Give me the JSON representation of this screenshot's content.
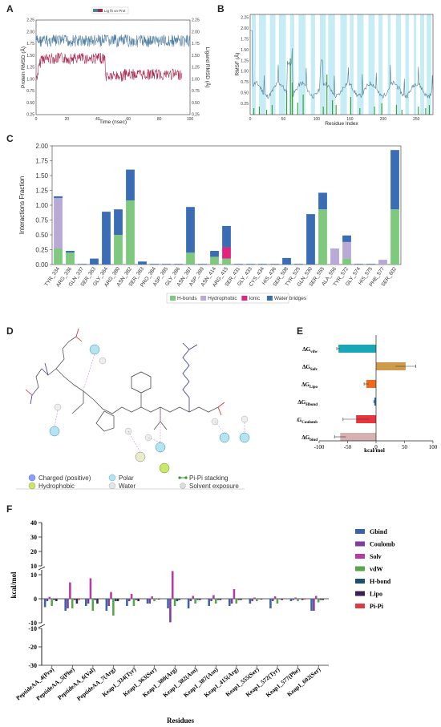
{
  "panels": {
    "a": {
      "label": "A",
      "legend": "Lig fit on Prot",
      "xlabel": "Time (nsec)",
      "ylabel_left": "Protein RMSD (Å)",
      "ylabel_right": "Ligand RMSD (Å)",
      "xticks": [
        "0",
        "20",
        "40",
        "60",
        "80",
        "100"
      ],
      "yticks_left": [
        "0.25",
        "0.50",
        "0.75",
        "1.00",
        "1.25",
        "1.50",
        "1.75",
        "2.00",
        "2.25"
      ],
      "yticks_right": [
        "0.25",
        "0.50",
        "0.75",
        "1.00",
        "1.25",
        "1.50",
        "1.75",
        "2.00",
        "2.25"
      ],
      "colors": {
        "protein": "#4f7ea0",
        "ligand": "#a8284e"
      }
    },
    "b": {
      "label": "B",
      "xlabel": "Residue Index",
      "ylabel": "RMSF (Å)",
      "xticks": [
        "0",
        "50",
        "100",
        "150",
        "200",
        "250"
      ],
      "yticks": [
        "0.25",
        "0.50",
        "0.75",
        "1.00",
        "1.25",
        "1.50",
        "1.75",
        "2.00",
        "2.25"
      ],
      "colors": {
        "line": "#4f7f95",
        "contact": "#2e9e2e",
        "band": "#c6ecf5"
      }
    },
    "c": {
      "label": "C",
      "colors": {
        "hbond": "#7fc97f",
        "hydrophobic": "#b8a9d6",
        "ionic": "#e3247f",
        "water": "#3a6db5"
      }
    },
    "d": {
      "label": "D",
      "legend": [
        {
          "label": "Charged (positive)",
          "icon": "blue-sphere"
        },
        {
          "label": "Polar",
          "icon": "cyan-sphere"
        },
        {
          "label": "Pi-Pi stacking",
          "icon": "green-dumbbell"
        },
        {
          "label": "Hydrophobic",
          "icon": "green-sphere"
        },
        {
          "label": "Water",
          "icon": "gray-sphere"
        },
        {
          "label": "Solvent exposure",
          "icon": "dotted-circle"
        }
      ]
    },
    "e": {
      "label": "E"
    },
    "f": {
      "label": "F"
    }
  },
  "chart_data": [
    {
      "type": "bar",
      "panel": "C",
      "ylabel": "Interactions Fraction",
      "ylim": [
        0,
        2.0
      ],
      "yticks": [
        "0.00",
        "0.25",
        "0.50",
        "0.75",
        "1.00",
        "1.25",
        "1.50",
        "1.75",
        "2.00"
      ],
      "legend_position": "bottom",
      "categories": [
        "TYR_334",
        "ARG_336",
        "GLN_337",
        "SER_363",
        "GLY_364",
        "ARG_380",
        "ASN_382",
        "SER_383",
        "PRO_384",
        "ASP_385",
        "GLY_386",
        "ASN_387",
        "ASP_389",
        "ASN_414",
        "ARG_415",
        "SER_431",
        "GLY_433",
        "CYS_434",
        "HIS_436",
        "SER_508",
        "TYR_525",
        "GLN_530",
        "SER_555",
        "ALA_556",
        "TYR_572",
        "GLY_574",
        "HIS_575",
        "PHE_577",
        "SER_602"
      ],
      "series": [
        {
          "name": "H-bonds",
          "values": [
            0.27,
            0.2,
            0,
            0,
            0,
            0.5,
            1.08,
            0,
            0,
            0,
            0,
            0.2,
            0,
            0.13,
            0.1,
            0,
            0,
            0,
            0,
            0,
            0,
            0,
            0.93,
            0,
            0.1,
            0,
            0,
            0,
            0.93
          ]
        },
        {
          "name": "Hydrophobic",
          "values": [
            0.85,
            0,
            0,
            0,
            0,
            0,
            0,
            0,
            0,
            0,
            0,
            0,
            0,
            0,
            0,
            0,
            0,
            0,
            0,
            0,
            0,
            0,
            0,
            0.27,
            0.28,
            0,
            0,
            0.08,
            0
          ]
        },
        {
          "name": "Ionic",
          "values": [
            0,
            0,
            0,
            0,
            0,
            0,
            0,
            0,
            0,
            0,
            0,
            0,
            0,
            0,
            0.19,
            0,
            0,
            0,
            0,
            0,
            0,
            0,
            0,
            0,
            0,
            0,
            0,
            0,
            0
          ]
        },
        {
          "name": "Water bridges",
          "values": [
            0.03,
            0.03,
            0.01,
            0.1,
            0.89,
            0.43,
            0.52,
            0.05,
            0.01,
            0.01,
            0.01,
            0.77,
            0.01,
            0.1,
            0.36,
            0.01,
            0.01,
            0.01,
            0.01,
            0.11,
            0.01,
            0.85,
            0.28,
            0,
            0.11,
            0.01,
            0.01,
            0,
            1.0
          ]
        }
      ]
    },
    {
      "type": "bar",
      "panel": "E",
      "orientation": "horizontal",
      "xlabel": "kcal/mol",
      "xlim": [
        -100,
        100
      ],
      "xticks": [
        "-100",
        "-50",
        "0",
        "50",
        "100"
      ],
      "categories": [
        {
          "base": "ΔG",
          "sub": "vdw"
        },
        {
          "base": "ΔG",
          "sub": "Solv"
        },
        {
          "base": "ΔG",
          "sub": "Lipo"
        },
        {
          "base": "ΔG",
          "sub": "Hbond"
        },
        {
          "base": "ΔG",
          "sub": "Coulomb"
        },
        {
          "base": "ΔG",
          "sub": "bind"
        }
      ],
      "values": [
        -66,
        52,
        -17,
        -3,
        -35,
        -63
      ],
      "errors": [
        3,
        18,
        4,
        1,
        23,
        10
      ],
      "colors": [
        "#19a7b8",
        "#d09a4d",
        "#ee6a1f",
        "#1c6fc4",
        "#e8343c",
        "#d7b0b0"
      ]
    },
    {
      "type": "bar",
      "panel": "F",
      "ylabel": "kcal/mol",
      "xlabel": "Residues",
      "ylim": [
        -30,
        40
      ],
      "yticks_top": [
        "10",
        "20",
        "30",
        "40"
      ],
      "yticks_mid": [
        "-10",
        "0",
        "10"
      ],
      "yticks_bottom": [
        "-30",
        "-20",
        "-10"
      ],
      "categories": [
        "PeptideAA_4(Pro)",
        "PeptideAA_5(Phe)",
        "PeptideAA_6(Val)",
        "PeptideAA_7(Arg)",
        "Keap1_334(Tyr)",
        "Keap1_363(Ser)",
        "Keap1_380(Arg)",
        "Keap1_382(Asn)",
        "Keap1_387(Asn)",
        "Keap1_415(Arg)",
        "Keap1_555(Ser)",
        "Keap1_572(Tyr)",
        "Keap1_577(Phe)",
        "Keap1_602(Ser)"
      ],
      "series": [
        {
          "name": "Gbind",
          "color": "#3a63a8",
          "values": [
            -3.5,
            -5,
            -3,
            -5,
            -3,
            -2,
            -4,
            -4,
            -3,
            -3,
            -2,
            -4,
            -1,
            -5
          ]
        },
        {
          "name": "Coulomb",
          "color": "#7e3da0",
          "values": [
            -1,
            -4,
            -2,
            -3,
            -1,
            -2,
            -10,
            -1,
            -1,
            -2,
            -1,
            -1,
            -0.5,
            -5
          ]
        },
        {
          "name": "Solv",
          "color": "#b43aa8",
          "values": [
            0.8,
            6.8,
            8.5,
            2.8,
            2,
            1,
            11.5,
            1.2,
            1.5,
            4,
            0.5,
            1,
            0.5,
            1.2
          ]
        },
        {
          "name": "vdW",
          "color": "#55a84a",
          "values": [
            -3,
            -4,
            -5,
            -7,
            -3,
            -1,
            -3,
            -2,
            -2,
            -2,
            -1,
            -2,
            -1,
            -1.5
          ]
        },
        {
          "name": "H-bond",
          "color": "#1d4f6e",
          "values": [
            -0.5,
            -0.5,
            -0.5,
            -1,
            -0.5,
            -0.2,
            -1,
            -0.5,
            -0.5,
            -0.5,
            -0.2,
            -0.2,
            -0.1,
            -0.5
          ]
        },
        {
          "name": "Lipo",
          "color": "#3b1f55",
          "values": [
            -1,
            -2,
            -2,
            -1,
            -1,
            -0.3,
            -0.5,
            -0.5,
            -0.5,
            -0.5,
            -0.3,
            -0.5,
            -0.5,
            -0.5
          ]
        },
        {
          "name": "Pi-Pi",
          "color": "#e03a44",
          "values": [
            0,
            -0.5,
            0,
            0,
            -0.2,
            0,
            0,
            0,
            0,
            0,
            0,
            -0.2,
            -0.3,
            0
          ]
        }
      ]
    }
  ]
}
